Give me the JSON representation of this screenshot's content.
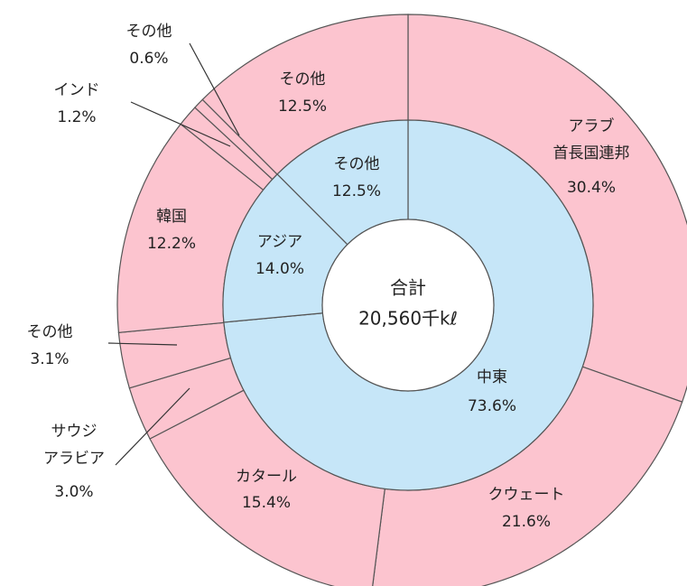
{
  "chart_data": {
    "type": "donut",
    "center_label": [
      "合計",
      "20,560千kℓ"
    ],
    "outer": {
      "color": "#fcc4cf",
      "categories": [
        "アラブ\n首長国連邦",
        "クウェート",
        "カタール",
        "サウジ\nアラビア",
        "その他",
        "韓国",
        "インド",
        "その他",
        "その他"
      ],
      "values": [
        30.4,
        21.6,
        15.4,
        3.0,
        3.1,
        12.2,
        1.2,
        0.6,
        12.5
      ],
      "value_labels": [
        "30.4%",
        "21.6%",
        "15.4%",
        "3.0%",
        "3.1%",
        "12.2%",
        "1.2%",
        "0.6%",
        "12.5%"
      ]
    },
    "inner": {
      "color": "#c6e6f8",
      "categories": [
        "中東",
        "アジア",
        "その他"
      ],
      "values": [
        73.6,
        14.0,
        12.5
      ],
      "value_labels": [
        "73.6%",
        "14.0%",
        "12.5%"
      ]
    }
  }
}
